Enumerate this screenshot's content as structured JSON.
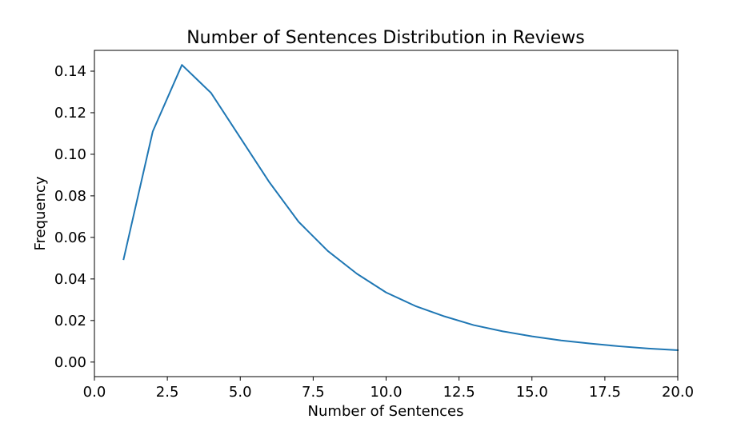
{
  "chart_data": {
    "type": "line",
    "title": "Number of Sentences Distribution in Reviews",
    "xlabel": "Number of Sentences",
    "ylabel": "Frequency",
    "xlim": [
      0.0,
      20.0
    ],
    "ylim": [
      -0.007,
      0.15
    ],
    "xticks": [
      0.0,
      2.5,
      5.0,
      7.5,
      10.0,
      12.5,
      15.0,
      17.5,
      20.0
    ],
    "xtick_labels": [
      "0.0",
      "2.5",
      "5.0",
      "7.5",
      "10.0",
      "12.5",
      "15.0",
      "17.5",
      "20.0"
    ],
    "yticks": [
      0.0,
      0.02,
      0.04,
      0.06,
      0.08,
      0.1,
      0.12,
      0.14
    ],
    "ytick_labels": [
      "0.00",
      "0.02",
      "0.04",
      "0.06",
      "0.08",
      "0.10",
      "0.12",
      "0.14"
    ],
    "grid": false,
    "series": [
      {
        "color": "#1f77b4",
        "x": [
          1,
          2,
          3,
          4,
          5,
          6,
          7,
          8,
          9,
          10,
          11,
          12,
          13,
          14,
          15,
          16,
          17,
          18,
          19,
          20
        ],
        "y": [
          0.0495,
          0.111,
          0.143,
          0.1295,
          0.108,
          0.0865,
          0.0675,
          0.0535,
          0.0425,
          0.0335,
          0.027,
          0.022,
          0.0178,
          0.0148,
          0.0124,
          0.0104,
          0.0089,
          0.0076,
          0.0065,
          0.0057
        ]
      }
    ]
  }
}
